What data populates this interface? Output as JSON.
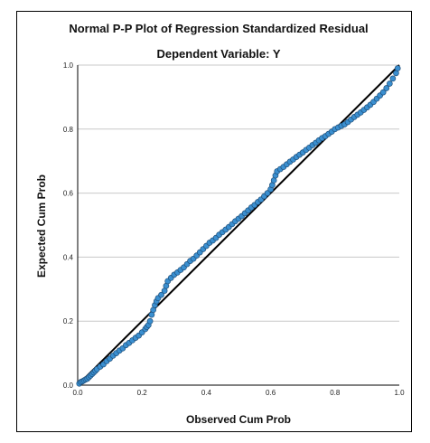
{
  "chart_data": {
    "type": "scatter",
    "title": "Normal P-P Plot of Regression Standardized Residual",
    "subtitle": "Dependent Variable: Y",
    "xlabel": "Observed Cum Prob",
    "ylabel": "Expected Cum Prob",
    "xlim": [
      0,
      1
    ],
    "ylim": [
      0,
      1
    ],
    "x_ticks": [
      "0.0",
      "0.2",
      "0.4",
      "0.6",
      "0.8",
      "1.0"
    ],
    "y_ticks": [
      "0.0",
      "0.2",
      "0.4",
      "0.6",
      "0.8",
      "1.0"
    ],
    "grid": "horizontal",
    "reference_line": [
      [
        0,
        0
      ],
      [
        1,
        1
      ]
    ],
    "point_color": "#3a8fd0",
    "point_edge_color": "#1f4f7a",
    "points": [
      [
        0.005,
        0.005
      ],
      [
        0.01,
        0.01
      ],
      [
        0.015,
        0.012
      ],
      [
        0.02,
        0.015
      ],
      [
        0.025,
        0.018
      ],
      [
        0.03,
        0.02
      ],
      [
        0.035,
        0.025
      ],
      [
        0.04,
        0.03
      ],
      [
        0.045,
        0.035
      ],
      [
        0.05,
        0.04
      ],
      [
        0.055,
        0.045
      ],
      [
        0.06,
        0.05
      ],
      [
        0.07,
        0.058
      ],
      [
        0.08,
        0.065
      ],
      [
        0.09,
        0.075
      ],
      [
        0.1,
        0.083
      ],
      [
        0.11,
        0.092
      ],
      [
        0.12,
        0.1
      ],
      [
        0.13,
        0.108
      ],
      [
        0.14,
        0.115
      ],
      [
        0.15,
        0.125
      ],
      [
        0.16,
        0.132
      ],
      [
        0.17,
        0.14
      ],
      [
        0.18,
        0.148
      ],
      [
        0.19,
        0.155
      ],
      [
        0.2,
        0.165
      ],
      [
        0.21,
        0.175
      ],
      [
        0.215,
        0.182
      ],
      [
        0.22,
        0.188
      ],
      [
        0.225,
        0.2
      ],
      [
        0.23,
        0.22
      ],
      [
        0.235,
        0.235
      ],
      [
        0.24,
        0.25
      ],
      [
        0.245,
        0.262
      ],
      [
        0.25,
        0.272
      ],
      [
        0.26,
        0.282
      ],
      [
        0.27,
        0.295
      ],
      [
        0.275,
        0.31
      ],
      [
        0.28,
        0.325
      ],
      [
        0.29,
        0.335
      ],
      [
        0.3,
        0.345
      ],
      [
        0.31,
        0.352
      ],
      [
        0.32,
        0.36
      ],
      [
        0.33,
        0.368
      ],
      [
        0.34,
        0.378
      ],
      [
        0.35,
        0.388
      ],
      [
        0.36,
        0.395
      ],
      [
        0.37,
        0.405
      ],
      [
        0.38,
        0.415
      ],
      [
        0.39,
        0.425
      ],
      [
        0.4,
        0.435
      ],
      [
        0.41,
        0.445
      ],
      [
        0.42,
        0.452
      ],
      [
        0.43,
        0.46
      ],
      [
        0.44,
        0.47
      ],
      [
        0.45,
        0.478
      ],
      [
        0.46,
        0.486
      ],
      [
        0.47,
        0.494
      ],
      [
        0.48,
        0.503
      ],
      [
        0.49,
        0.512
      ],
      [
        0.5,
        0.52
      ],
      [
        0.51,
        0.528
      ],
      [
        0.52,
        0.537
      ],
      [
        0.53,
        0.546
      ],
      [
        0.54,
        0.555
      ],
      [
        0.55,
        0.563
      ],
      [
        0.56,
        0.572
      ],
      [
        0.57,
        0.58
      ],
      [
        0.58,
        0.59
      ],
      [
        0.59,
        0.6
      ],
      [
        0.6,
        0.612
      ],
      [
        0.605,
        0.625
      ],
      [
        0.61,
        0.64
      ],
      [
        0.615,
        0.655
      ],
      [
        0.62,
        0.668
      ],
      [
        0.63,
        0.675
      ],
      [
        0.64,
        0.682
      ],
      [
        0.65,
        0.69
      ],
      [
        0.66,
        0.698
      ],
      [
        0.67,
        0.705
      ],
      [
        0.68,
        0.713
      ],
      [
        0.69,
        0.72
      ],
      [
        0.7,
        0.727
      ],
      [
        0.71,
        0.735
      ],
      [
        0.72,
        0.742
      ],
      [
        0.73,
        0.75
      ],
      [
        0.74,
        0.757
      ],
      [
        0.75,
        0.765
      ],
      [
        0.76,
        0.772
      ],
      [
        0.77,
        0.778
      ],
      [
        0.78,
        0.785
      ],
      [
        0.79,
        0.792
      ],
      [
        0.8,
        0.8
      ],
      [
        0.81,
        0.805
      ],
      [
        0.82,
        0.81
      ],
      [
        0.83,
        0.815
      ],
      [
        0.84,
        0.822
      ],
      [
        0.85,
        0.83
      ],
      [
        0.86,
        0.838
      ],
      [
        0.87,
        0.845
      ],
      [
        0.88,
        0.852
      ],
      [
        0.89,
        0.86
      ],
      [
        0.9,
        0.868
      ],
      [
        0.91,
        0.876
      ],
      [
        0.92,
        0.885
      ],
      [
        0.93,
        0.895
      ],
      [
        0.94,
        0.905
      ],
      [
        0.95,
        0.915
      ],
      [
        0.96,
        0.928
      ],
      [
        0.97,
        0.942
      ],
      [
        0.98,
        0.958
      ],
      [
        0.99,
        0.975
      ],
      [
        0.995,
        0.99
      ]
    ]
  }
}
